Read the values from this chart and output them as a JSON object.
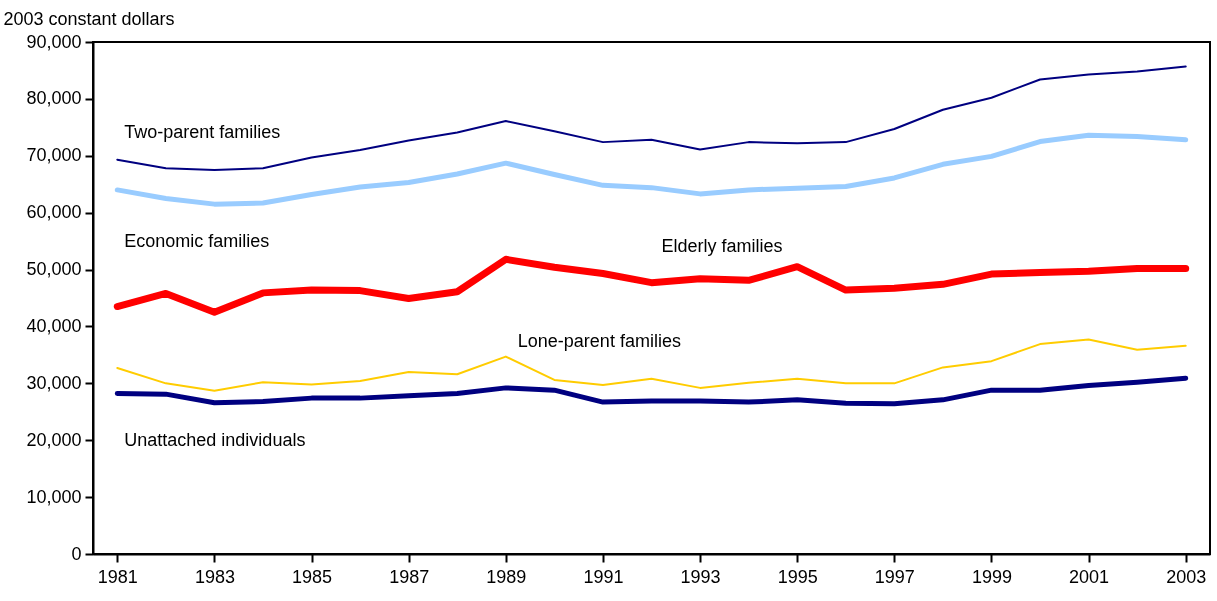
{
  "chart_data": {
    "type": "line",
    "ylabel": "2003 constant dollars",
    "x": [
      1981,
      1982,
      1983,
      1984,
      1985,
      1986,
      1987,
      1988,
      1989,
      1990,
      1991,
      1992,
      1993,
      1994,
      1995,
      1996,
      1997,
      1998,
      1999,
      2000,
      2001,
      2002,
      2003
    ],
    "series": [
      {
        "name": "Two-parent families",
        "color": "#000080",
        "values": [
          69300,
          67800,
          67500,
          67800,
          69700,
          71000,
          72700,
          74100,
          76100,
          74300,
          72400,
          72800,
          71100,
          72400,
          72200,
          72400,
          74700,
          78100,
          80200,
          83400,
          84300,
          84800,
          85700
        ]
      },
      {
        "name": "Economic families",
        "color": "#99ccff",
        "values": [
          64000,
          62500,
          61500,
          61700,
          63200,
          64500,
          65300,
          66800,
          68700,
          66700,
          64800,
          64400,
          63300,
          64000,
          64300,
          64600,
          66100,
          68500,
          69900,
          72500,
          73600,
          73400,
          72800
        ]
      },
      {
        "name": "Elderly families",
        "color": "#ff0000",
        "values": [
          43500,
          45800,
          42500,
          45900,
          46400,
          46300,
          44900,
          46100,
          51800,
          50400,
          49300,
          47700,
          48400,
          48100,
          50500,
          46400,
          46700,
          47400,
          49200,
          49500,
          49700,
          50200,
          50200
        ]
      },
      {
        "name": "Lone-parent families",
        "color": "#ffcc00",
        "values": [
          32700,
          30000,
          28700,
          30200,
          29800,
          30400,
          32000,
          31600,
          34700,
          30600,
          29700,
          30800,
          29200,
          30100,
          30800,
          30000,
          30000,
          32800,
          33900,
          36900,
          37700,
          35900,
          36600
        ]
      },
      {
        "name": "Unattached individuals",
        "color": "#000080",
        "values": [
          28200,
          28100,
          26600,
          26800,
          27400,
          27400,
          27800,
          28200,
          29200,
          28800,
          26700,
          26900,
          26900,
          26700,
          27100,
          26500,
          26400,
          27100,
          28800,
          28800,
          29600,
          30200,
          30900
        ]
      }
    ],
    "xlim": [
      1980.5,
      2003.5
    ],
    "xticks": [
      1981,
      1983,
      1985,
      1987,
      1989,
      1991,
      1993,
      1995,
      1997,
      1999,
      2001,
      2003
    ],
    "ylim": [
      0,
      90000
    ],
    "yticks": [
      0,
      {
        "value": 10000,
        "label": "10,000"
      },
      {
        "value": 20000,
        "label": "20,000"
      },
      {
        "value": 30000,
        "label": "30,000"
      },
      {
        "value": 40000,
        "label": "40,000"
      },
      {
        "value": 50000,
        "label": "50,000"
      },
      {
        "value": 60000,
        "label": "60,000"
      },
      {
        "value": 70000,
        "label": "70,000"
      },
      {
        "value": 80000,
        "label": "80,000"
      },
      {
        "value": 90000,
        "label": "90,000"
      }
    ],
    "grid": false,
    "marker": "none",
    "line_style": "solid"
  }
}
